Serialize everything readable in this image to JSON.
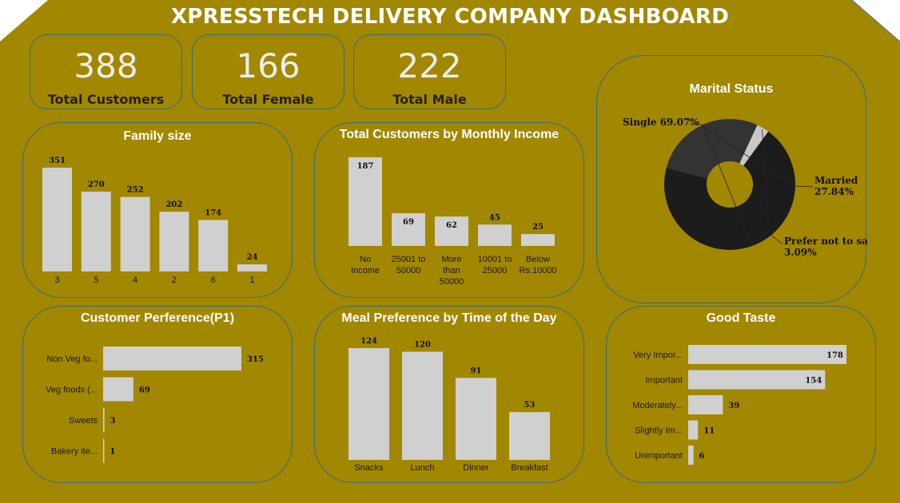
{
  "dashboard": {
    "title": "XPRESSTECH DELIVERY COMPANY DASHBOARD"
  },
  "colors": {
    "background": "#a28700",
    "bar": "#d0d0d0",
    "border": "#2f6f80",
    "pie_single": "#1c1c1c",
    "pie_married": "#333333",
    "pie_prefer": "#c8c8c8"
  },
  "kpis": [
    {
      "value": "388",
      "label": "Total Customers"
    },
    {
      "value": "166",
      "label": "Total Female"
    },
    {
      "value": "222",
      "label": "Total Male"
    }
  ],
  "chart_data": [
    {
      "id": "family",
      "type": "bar",
      "title": "Family size",
      "categories": [
        "3",
        "5",
        "4",
        "2",
        "6",
        "1"
      ],
      "values": [
        351,
        270,
        252,
        202,
        174,
        24
      ]
    },
    {
      "id": "income",
      "type": "bar",
      "title": "Total Customers by Monthly Income",
      "categories": [
        [
          "No",
          "Income"
        ],
        [
          "25001 to",
          "50000"
        ],
        [
          "More",
          "than",
          "50000"
        ],
        [
          "10001 to",
          "25000"
        ],
        [
          "Below",
          "Rs.10000"
        ]
      ],
      "values": [
        187,
        69,
        62,
        45,
        25
      ]
    },
    {
      "id": "marital",
      "type": "pie",
      "title": "Marital Status",
      "slices": [
        {
          "label": "Single",
          "pct_label": "69.07%",
          "value": 69.07
        },
        {
          "label": "Married",
          "pct_label": "27.84%",
          "value": 27.84
        },
        {
          "label": "Prefer not to sa",
          "pct_label": "3.09%",
          "value": 3.09
        }
      ]
    },
    {
      "id": "pref",
      "type": "hbar",
      "title": "Customer Perference(P1)",
      "categories": [
        "Non Veg fo...",
        "Veg foods (...",
        "Sweets",
        "Bakery ite..."
      ],
      "values": [
        315,
        69,
        3,
        1
      ]
    },
    {
      "id": "meal",
      "type": "bar",
      "title": "Meal Preference by Time of the Day",
      "categories": [
        "Snacks",
        "Lunch",
        "Dinner",
        "Breakfast"
      ],
      "values": [
        124,
        120,
        91,
        53
      ]
    },
    {
      "id": "taste",
      "type": "hbar",
      "title": "Good Taste",
      "categories": [
        "Very Impor...",
        "Important",
        "Moderately...",
        "Slightly Im...",
        "Unimportant"
      ],
      "values": [
        178,
        154,
        39,
        11,
        6
      ]
    }
  ]
}
